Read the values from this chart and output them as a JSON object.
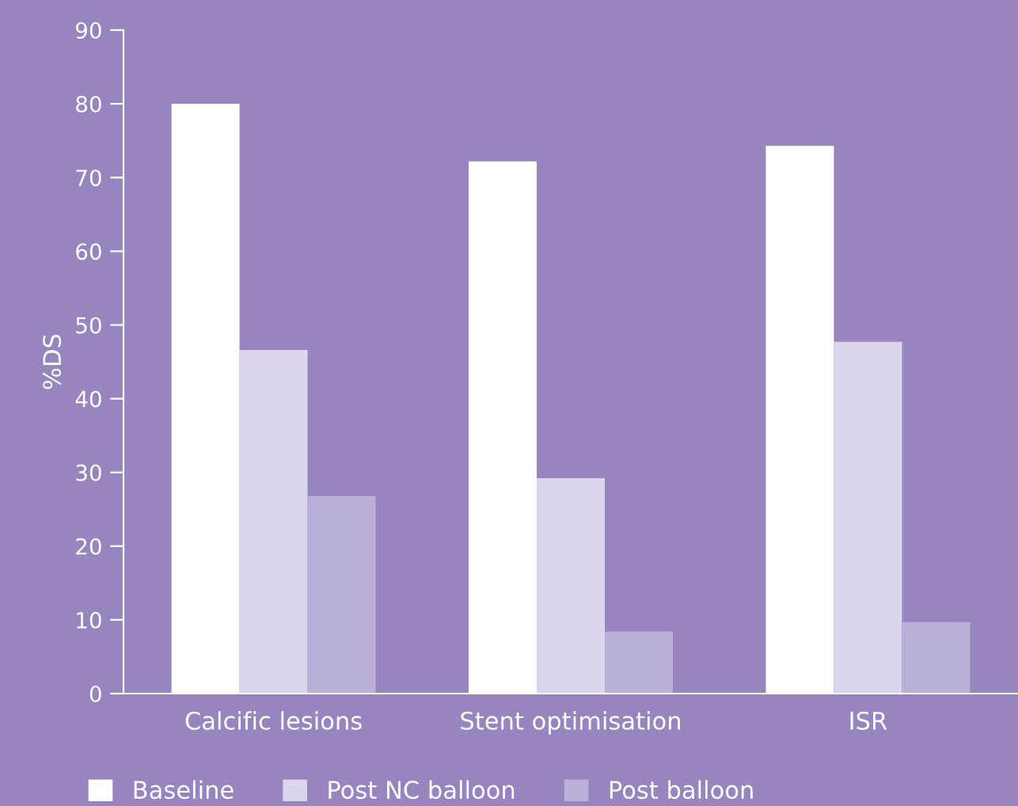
{
  "chart_data": {
    "type": "bar",
    "ylabel": "%DS",
    "categories": [
      "Calcific lesions",
      "Stent optimisation",
      "ISR"
    ],
    "series": [
      {
        "name": "Baseline",
        "color": "#ffffff",
        "values": [
          80,
          72.2,
          74.3
        ]
      },
      {
        "name": "Post NC balloon",
        "color": "#dcd6ec",
        "values": [
          46.6,
          29.2,
          47.7
        ]
      },
      {
        "name": "Post balloon",
        "color": "#bbb0d8",
        "values": [
          26.8,
          8.4,
          9.7
        ]
      }
    ],
    "ylim": [
      0,
      90
    ],
    "yticks": [
      0,
      10,
      20,
      30,
      40,
      50,
      60,
      70,
      80,
      90
    ],
    "grid": false,
    "legend": "bottom"
  }
}
